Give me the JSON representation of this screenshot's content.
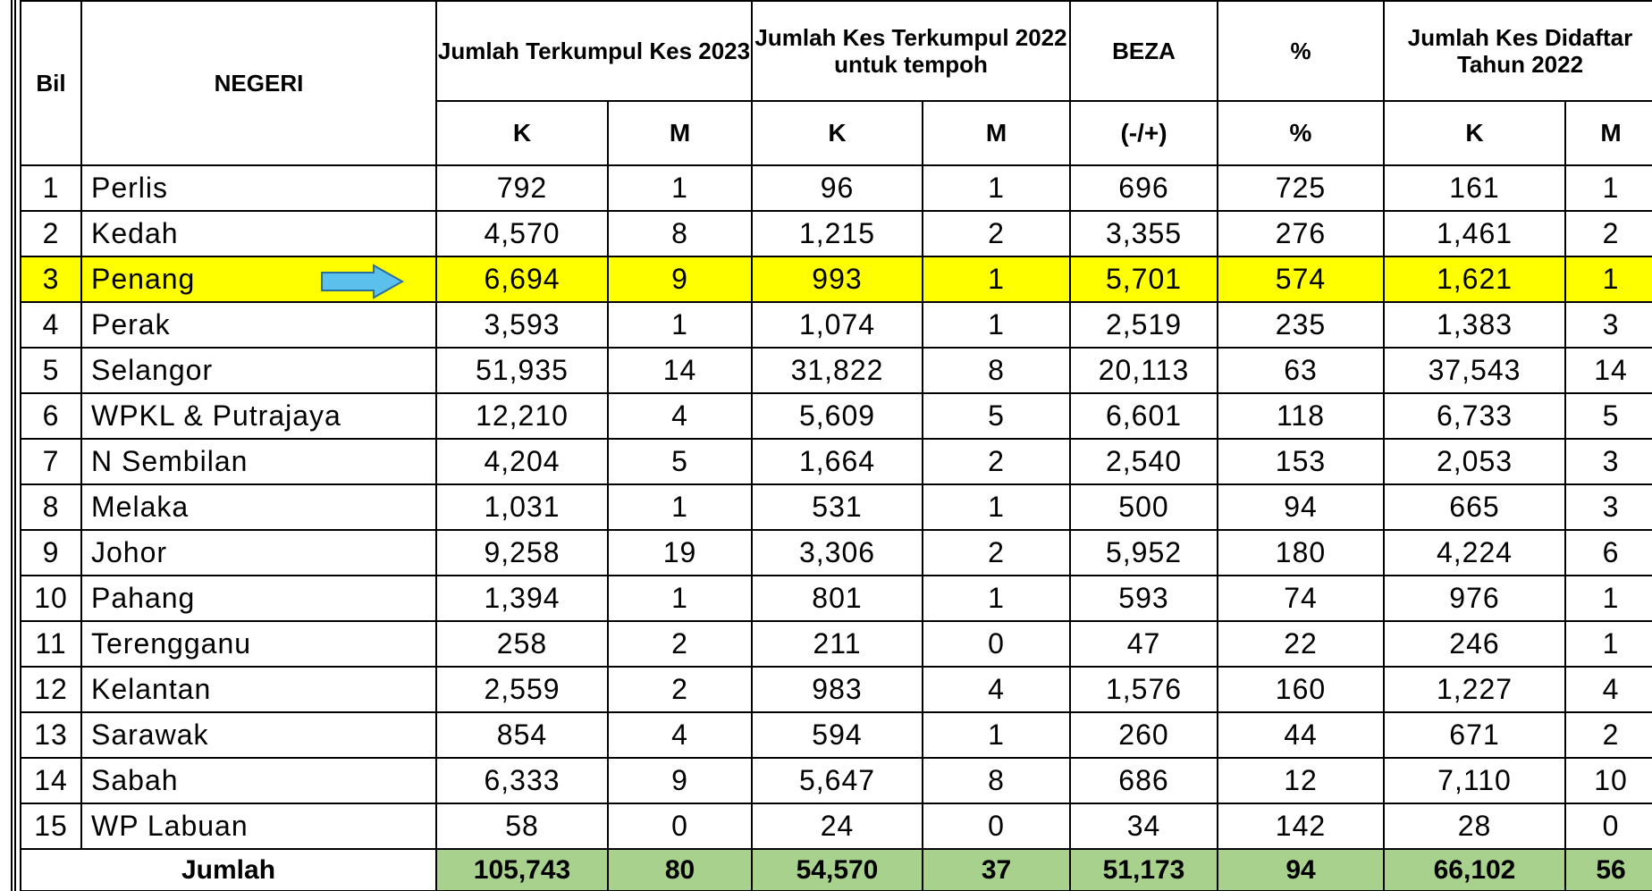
{
  "table": {
    "header": {
      "bil": "Bil",
      "negeri": "NEGERI",
      "groups": [
        "Jumlah Terkumpul Kes 2023",
        "Jumlah Kes Terkumpul 2022 untuk tempoh",
        "BEZA",
        "%",
        "Jumlah Kes Didaftar Tahun 2022"
      ]
    },
    "subheader": [
      "K",
      "M",
      "K",
      "M",
      "(-/+)",
      "%",
      "K",
      "M"
    ],
    "rows": [
      [
        "1",
        "Perlis",
        "792",
        "1",
        "96",
        "1",
        "696",
        "725",
        "161",
        "1"
      ],
      [
        "2",
        "Kedah",
        "4,570",
        "8",
        "1,215",
        "2",
        "3,355",
        "276",
        "1,461",
        "2"
      ],
      [
        "3",
        "Penang",
        "6,694",
        "9",
        "993",
        "1",
        "5,701",
        "574",
        "1,621",
        "1"
      ],
      [
        "4",
        "Perak",
        "3,593",
        "1",
        "1,074",
        "1",
        "2,519",
        "235",
        "1,383",
        "3"
      ],
      [
        "5",
        "Selangor",
        "51,935",
        "14",
        "31,822",
        "8",
        "20,113",
        "63",
        "37,543",
        "14"
      ],
      [
        "6",
        "WPKL & Putrajaya",
        "12,210",
        "4",
        "5,609",
        "5",
        "6,601",
        "118",
        "6,733",
        "5"
      ],
      [
        "7",
        "N Sembilan",
        "4,204",
        "5",
        "1,664",
        "2",
        "2,540",
        "153",
        "2,053",
        "3"
      ],
      [
        "8",
        "Melaka",
        "1,031",
        "1",
        "531",
        "1",
        "500",
        "94",
        "665",
        "3"
      ],
      [
        "9",
        "Johor",
        "9,258",
        "19",
        "3,306",
        "2",
        "5,952",
        "180",
        "4,224",
        "6"
      ],
      [
        "10",
        "Pahang",
        "1,394",
        "1",
        "801",
        "1",
        "593",
        "74",
        "976",
        "1"
      ],
      [
        "11",
        "Terengganu",
        "258",
        "2",
        "211",
        "0",
        "47",
        "22",
        "246",
        "1"
      ],
      [
        "12",
        "Kelantan",
        "2,559",
        "2",
        "983",
        "4",
        "1,576",
        "160",
        "1,227",
        "4"
      ],
      [
        "13",
        "Sarawak",
        "854",
        "4",
        "594",
        "1",
        "260",
        "44",
        "671",
        "2"
      ],
      [
        "14",
        "Sabah",
        "6,333",
        "9",
        "5,647",
        "8",
        "686",
        "12",
        "7,110",
        "10"
      ],
      [
        "15",
        "WP Labuan",
        "58",
        "0",
        "24",
        "0",
        "34",
        "142",
        "28",
        "0"
      ]
    ],
    "total": {
      "label": "Jumlah",
      "values": [
        "105,743",
        "80",
        "54,570",
        "37",
        "51,173",
        "94",
        "66,102",
        "56"
      ]
    }
  }
}
